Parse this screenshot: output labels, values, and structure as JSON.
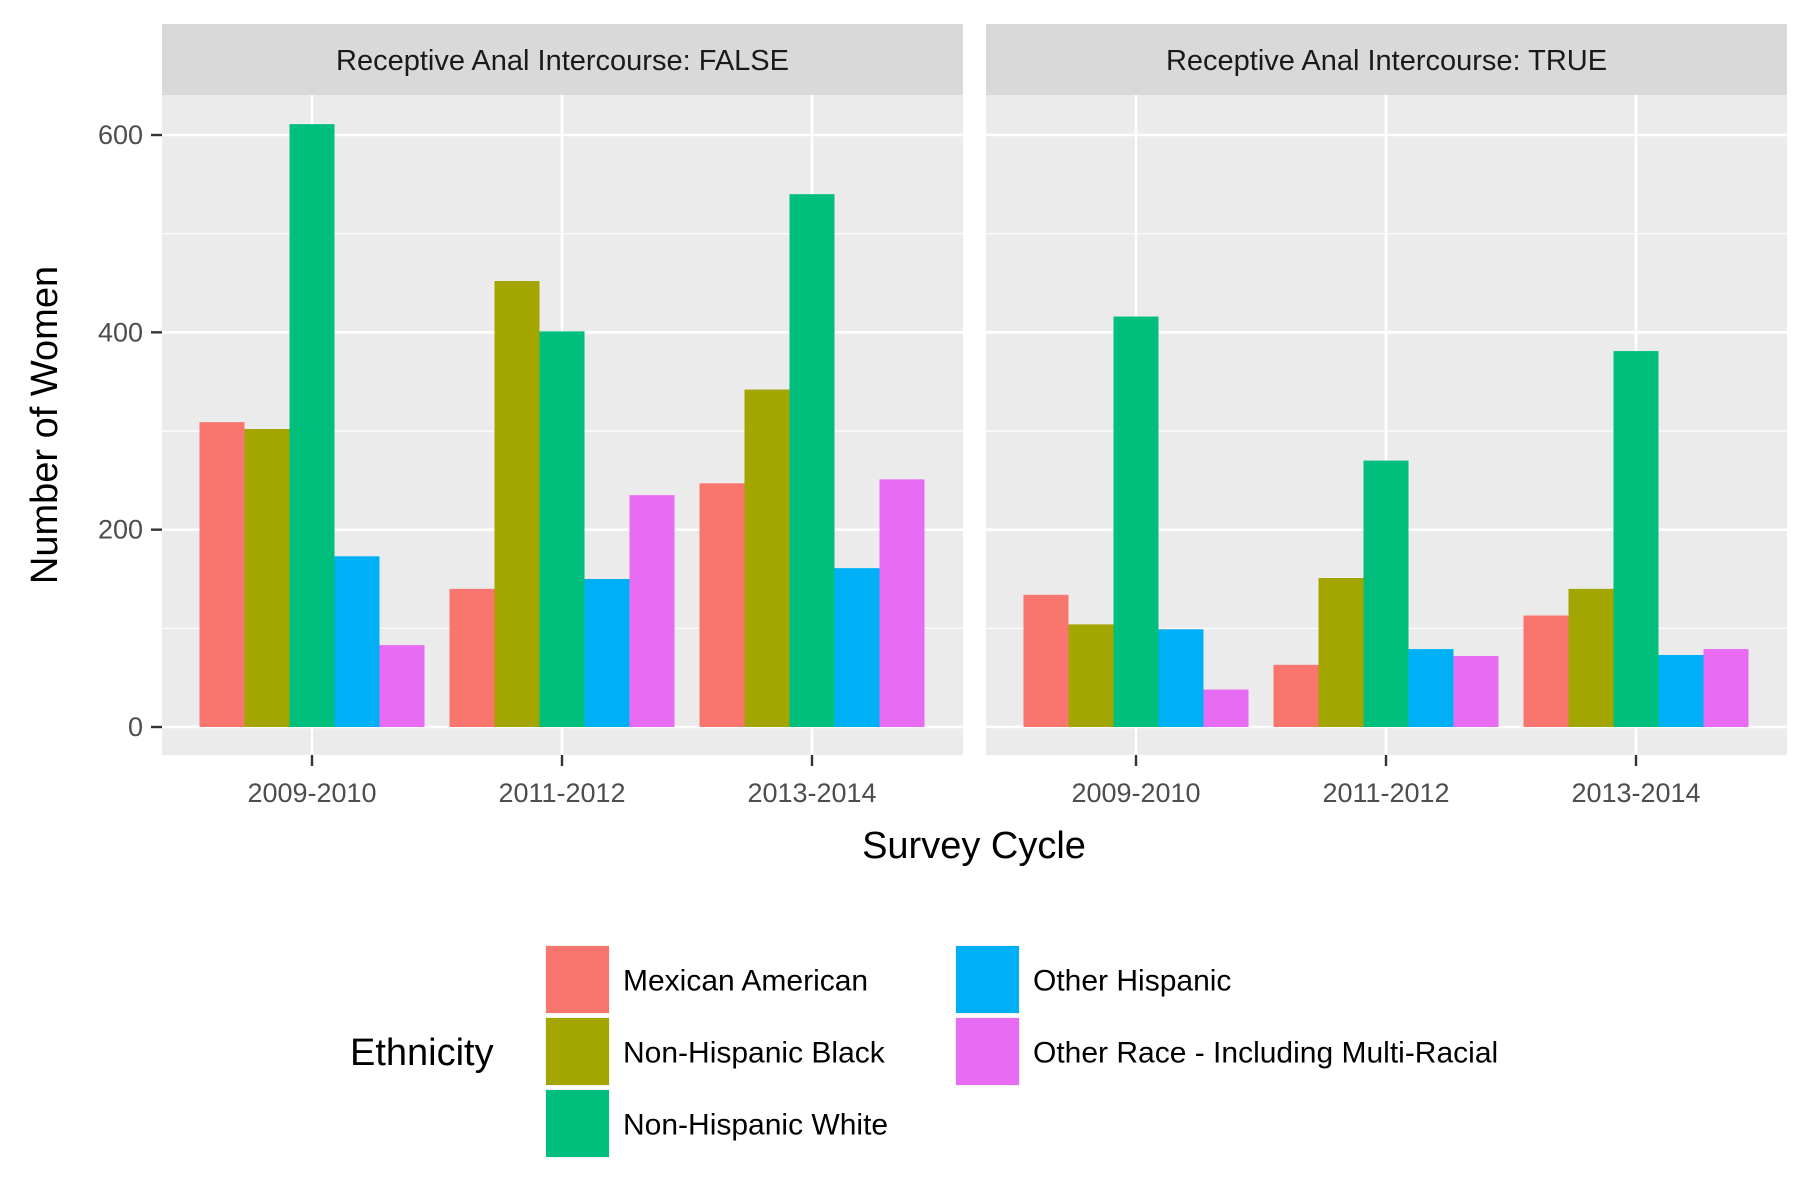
{
  "chart_data": {
    "type": "bar",
    "xlabel": "Survey Cycle",
    "ylabel": "Number of Women",
    "ylim": [
      0,
      700
    ],
    "yticks": [
      0,
      200,
      400,
      600
    ],
    "grid": true,
    "legend": {
      "title": "Ethnicity",
      "position": "bottom"
    },
    "categories": [
      "2009-2010",
      "2011-2012",
      "2013-2014"
    ],
    "series": [
      {
        "name": "Mexican American",
        "color": "#F8766D"
      },
      {
        "name": "Non-Hispanic Black",
        "color": "#A3A500"
      },
      {
        "name": "Non-Hispanic White",
        "color": "#00BF7D"
      },
      {
        "name": "Other Hispanic",
        "color": "#00B0F6"
      },
      {
        "name": "Other Race - Including Multi-Racial",
        "color": "#E76BF3"
      }
    ],
    "panels": [
      {
        "strip": "Receptive Anal Intercourse: FALSE",
        "values": [
          [
            309,
            140,
            247
          ],
          [
            302,
            452,
            342
          ],
          [
            611,
            401,
            540
          ],
          [
            173,
            150,
            161
          ],
          [
            83,
            235,
            251
          ]
        ]
      },
      {
        "strip": "Receptive Anal Intercourse: TRUE",
        "values": [
          [
            134,
            63,
            113
          ],
          [
            104,
            151,
            140
          ],
          [
            416,
            270,
            381
          ],
          [
            99,
            79,
            73
          ],
          [
            38,
            72,
            79
          ]
        ]
      }
    ]
  }
}
